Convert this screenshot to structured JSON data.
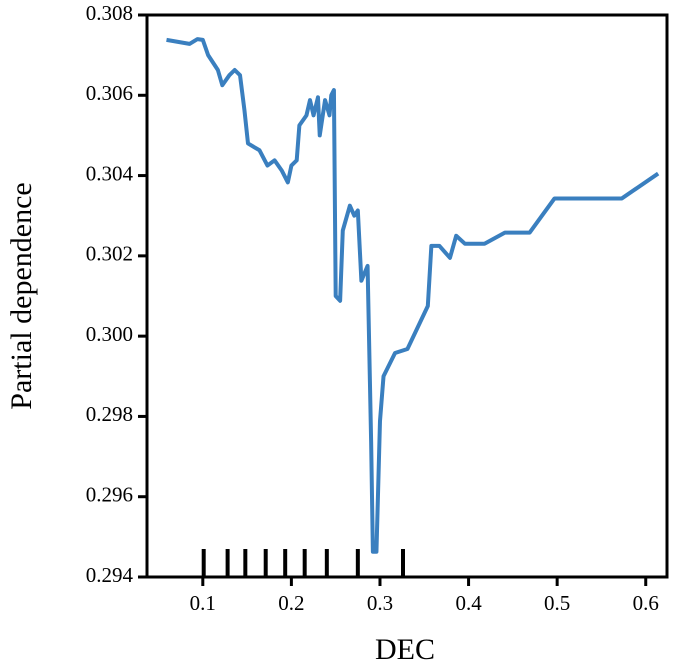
{
  "chart_data": {
    "type": "line",
    "x_label": "DEC",
    "y_label": "Partial dependence",
    "color": "#3a7fbf",
    "xlim": [
      0.037,
      0.624
    ],
    "ylim": [
      0.294,
      0.308
    ],
    "xticks": [
      0.1,
      0.2,
      0.3,
      0.4,
      0.5,
      0.6
    ],
    "yticks": [
      0.294,
      0.296,
      0.298,
      {
        "value": 0.3,
        "label": "0.300"
      },
      0.302,
      0.304,
      0.306,
      0.308
    ],
    "x": [
      0.059,
      0.085,
      0.094,
      0.1,
      0.106,
      0.117,
      0.122,
      0.13,
      0.136,
      0.142,
      0.147,
      0.151,
      0.164,
      0.173,
      0.181,
      0.189,
      0.196,
      0.2,
      0.206,
      0.209,
      0.217,
      0.221,
      0.225,
      0.23,
      0.232,
      0.238,
      0.243,
      0.245,
      0.248,
      0.25,
      0.255,
      0.258,
      0.266,
      0.271,
      0.275,
      0.279,
      0.286,
      0.29,
      0.292,
      0.296,
      0.3,
      0.304,
      0.317,
      0.331,
      0.354,
      0.358,
      0.367,
      0.379,
      0.386,
      0.396,
      0.418,
      0.441,
      0.469,
      0.497,
      0.573,
      0.614
    ],
    "values": [
      0.30738,
      0.30728,
      0.3074,
      0.30738,
      0.307,
      0.30663,
      0.30625,
      0.3065,
      0.30663,
      0.3065,
      0.30563,
      0.3048,
      0.30463,
      0.30425,
      0.30438,
      0.30413,
      0.30383,
      0.30425,
      0.30438,
      0.30525,
      0.3055,
      0.30588,
      0.3055,
      0.30595,
      0.305,
      0.30588,
      0.3055,
      0.306,
      0.30613,
      0.301,
      0.30088,
      0.30263,
      0.30325,
      0.303,
      0.30313,
      0.30138,
      0.30175,
      0.29738,
      0.29463,
      0.29463,
      0.29788,
      0.299,
      0.29958,
      0.29968,
      0.30075,
      0.30225,
      0.30225,
      0.30195,
      0.3025,
      0.3023,
      0.3023,
      0.30258,
      0.30258,
      0.30343,
      0.30343,
      0.30405
    ],
    "rug": [
      0.101,
      0.128,
      0.148,
      0.171,
      0.193,
      0.215,
      0.24,
      0.275,
      0.326
    ]
  }
}
